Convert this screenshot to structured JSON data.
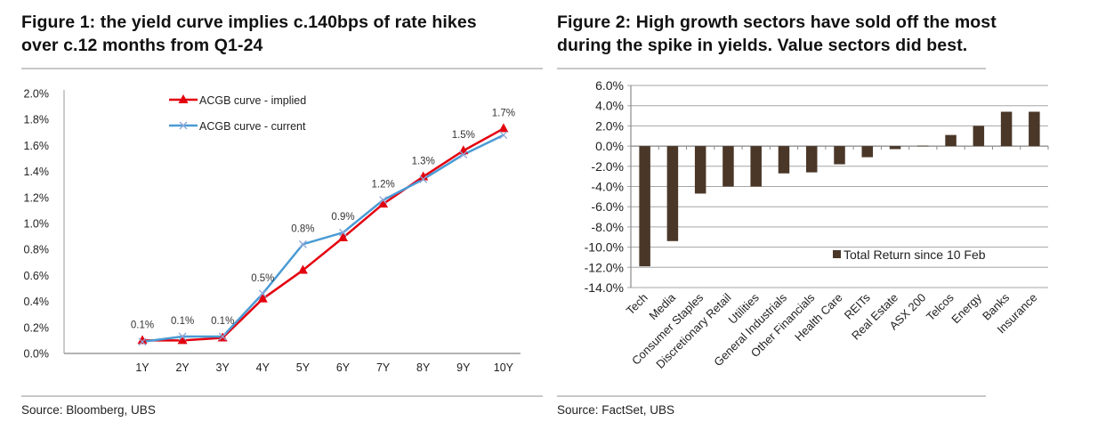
{
  "chart_data": [
    {
      "type": "line",
      "title": "Figure 1: the yield curve implies c.140bps of rate hikes over c.12 months from Q1-24",
      "xlabel": "",
      "ylabel": "",
      "categories": [
        "1Y",
        "2Y",
        "3Y",
        "4Y",
        "5Y",
        "6Y",
        "7Y",
        "8Y",
        "9Y",
        "10Y"
      ],
      "ylim": [
        0,
        2.0
      ],
      "yticks": [
        0.0,
        0.2,
        0.4,
        0.6,
        0.8,
        1.0,
        1.2,
        1.4,
        1.6,
        1.8,
        2.0
      ],
      "ytick_labels": [
        "0.0%",
        "0.2%",
        "0.4%",
        "0.6%",
        "0.8%",
        "1.0%",
        "1.2%",
        "1.4%",
        "1.6%",
        "1.8%",
        "2.0%"
      ],
      "grid": false,
      "legend": "top-center",
      "series": [
        {
          "name": "ACGB curve - implied",
          "color": "#e3000f",
          "marker": "triangle",
          "values": [
            0.1,
            0.1,
            0.12,
            0.42,
            0.64,
            0.89,
            1.15,
            1.36,
            1.56,
            1.73
          ]
        },
        {
          "name": "ACGB curve - current",
          "color": "#4a9bd4",
          "marker": "x",
          "values": [
            0.09,
            0.13,
            0.13,
            0.46,
            0.84,
            0.93,
            1.18,
            1.34,
            1.53,
            1.68
          ]
        }
      ],
      "data_labels": [
        "0.1%",
        "0.1%",
        "0.1%",
        "0.5%",
        "0.8%",
        "0.9%",
        "1.2%",
        "1.3%",
        "1.5%",
        "1.7%"
      ],
      "source": "Source:  Bloomberg, UBS"
    },
    {
      "type": "bar",
      "title": "Figure 2: High growth sectors have sold off the most during the spike in yields. Value sectors did best.",
      "xlabel": "",
      "ylabel": "",
      "categories": [
        "Tech",
        "Media",
        "Consumer Staples",
        "Discretionary Retail",
        "Utilities",
        "General Industrials",
        "Other Financials",
        "Health Care",
        "REITs",
        "Real Estate",
        "ASX 200",
        "Telcos",
        "Energy",
        "Banks",
        "Insurance"
      ],
      "series": [
        {
          "name": "Total Return since 10 Feb",
          "color": "#4a3728",
          "values": [
            -11.9,
            -9.4,
            -4.7,
            -4.0,
            -4.0,
            -2.7,
            -2.6,
            -1.8,
            -1.1,
            -0.3,
            0.05,
            1.1,
            2.0,
            3.4,
            3.4
          ]
        }
      ],
      "ylim": [
        -14.0,
        6.0
      ],
      "yticks": [
        6,
        4,
        2,
        0,
        -2,
        -4,
        -6,
        -8,
        -10,
        -12,
        -14
      ],
      "ytick_labels": [
        "6.0%",
        "4.0%",
        "2.0%",
        "0.0%",
        "-2.0%",
        "-4.0%",
        "-6.0%",
        "-8.0%",
        "-10.0%",
        "-12.0%",
        "-14.0%"
      ],
      "grid": true,
      "legend": "bottom-right",
      "source": "Source: FactSet, UBS"
    }
  ],
  "figure1": {
    "title_line1": "Figure 1: the yield curve implies c.140bps of rate hikes",
    "title_line2": "over c.12 months from Q1-24",
    "source": "Source:  Bloomberg, UBS"
  },
  "figure2": {
    "title_line1": "Figure 2: High growth sectors have sold off the most",
    "title_line2": "during the spike in yields. Value sectors did best.",
    "source": "Source: FactSet, UBS"
  }
}
